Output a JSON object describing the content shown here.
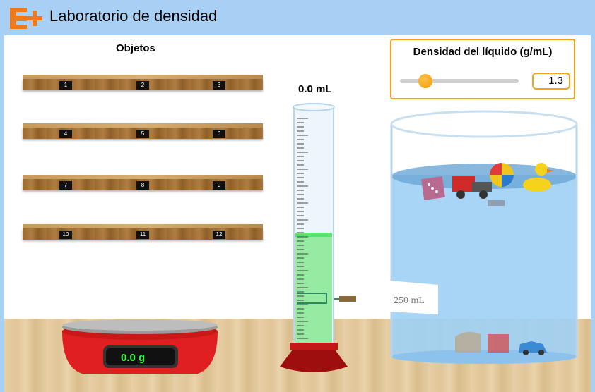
{
  "app": {
    "title": "Laboratorio de densidad",
    "logo": "e-plus-logo"
  },
  "objects": {
    "title": "Objetos",
    "shelves": [
      [
        "1",
        "2",
        "3"
      ],
      [
        "4",
        "5",
        "6"
      ],
      [
        "7",
        "8",
        "9"
      ],
      [
        "10",
        "11",
        "12"
      ]
    ]
  },
  "cylinder": {
    "volume_label": "0.0 mL"
  },
  "density": {
    "title": "Densidad del líquido (g/mL)",
    "value": "1.3",
    "min": 0.5,
    "max": 5.0
  },
  "scale": {
    "mass_label": "0.0 g"
  },
  "beaker": {
    "label": "250 mL"
  },
  "colors": {
    "title_bar": "#a8d0f5",
    "accent": "#f2a21c",
    "liquid_cylinder": "#4fe05a",
    "liquid_beaker": "#9ed0f5",
    "scale_red": "#e02020",
    "display_green": "#2bff3a"
  }
}
